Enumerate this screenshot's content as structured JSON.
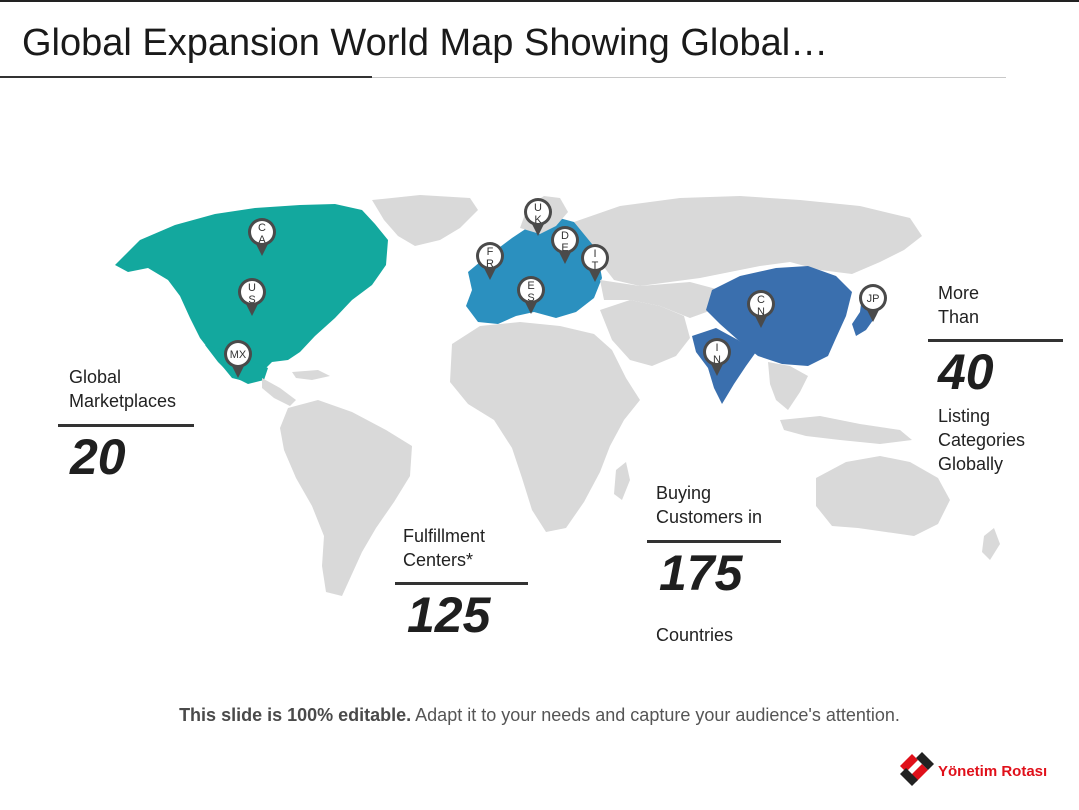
{
  "title": "Global Expansion World Map Showing Global…",
  "stats": {
    "marketplaces": {
      "label_line1": "Global",
      "label_line2": "Marketplaces",
      "number": "20"
    },
    "fulfillment": {
      "label_line1": "Fulfillment",
      "label_line2": "Centers*",
      "number": "125"
    },
    "customers": {
      "label_line1": "Buying",
      "label_line2": "Customers in",
      "number": "175",
      "suffix": "Countries"
    },
    "categories": {
      "label_line1": "More",
      "label_line2": "Than",
      "number": "40",
      "suffix_line1": "Listing",
      "suffix_line2": "Categories",
      "suffix_line3": "Globally"
    }
  },
  "pins": [
    {
      "code": "CA",
      "line1": "C",
      "line2": "A",
      "region": "north-america"
    },
    {
      "code": "US",
      "line1": "U",
      "line2": "S",
      "region": "north-america"
    },
    {
      "code": "MX",
      "line1": "MX",
      "line2": "",
      "region": "north-america"
    },
    {
      "code": "UK",
      "line1": "U",
      "line2": "K",
      "region": "europe"
    },
    {
      "code": "FR",
      "line1": "F",
      "line2": "R",
      "region": "europe"
    },
    {
      "code": "DE",
      "line1": "D",
      "line2": "E",
      "region": "europe"
    },
    {
      "code": "IT",
      "line1": "I",
      "line2": "T",
      "region": "europe"
    },
    {
      "code": "ES",
      "line1": "E",
      "line2": "S",
      "region": "europe"
    },
    {
      "code": "CN",
      "line1": "C",
      "line2": "N",
      "region": "asia"
    },
    {
      "code": "IN",
      "line1": "I",
      "line2": "N",
      "region": "asia"
    },
    {
      "code": "JP",
      "line1": "JP",
      "line2": "",
      "region": "asia"
    }
  ],
  "colors": {
    "north_america": "#13a89e",
    "europe": "#2b90bf",
    "asia": "#3a6fae",
    "land": "#d9d9d9",
    "pin": "#4a4a4a",
    "brand_red": "#e0101a"
  },
  "footer": {
    "bold": "This slide is 100% editable.",
    "rest": " Adapt it to your needs and capture your audience's attention."
  },
  "logo": {
    "text": "Yönetim Rotası"
  }
}
